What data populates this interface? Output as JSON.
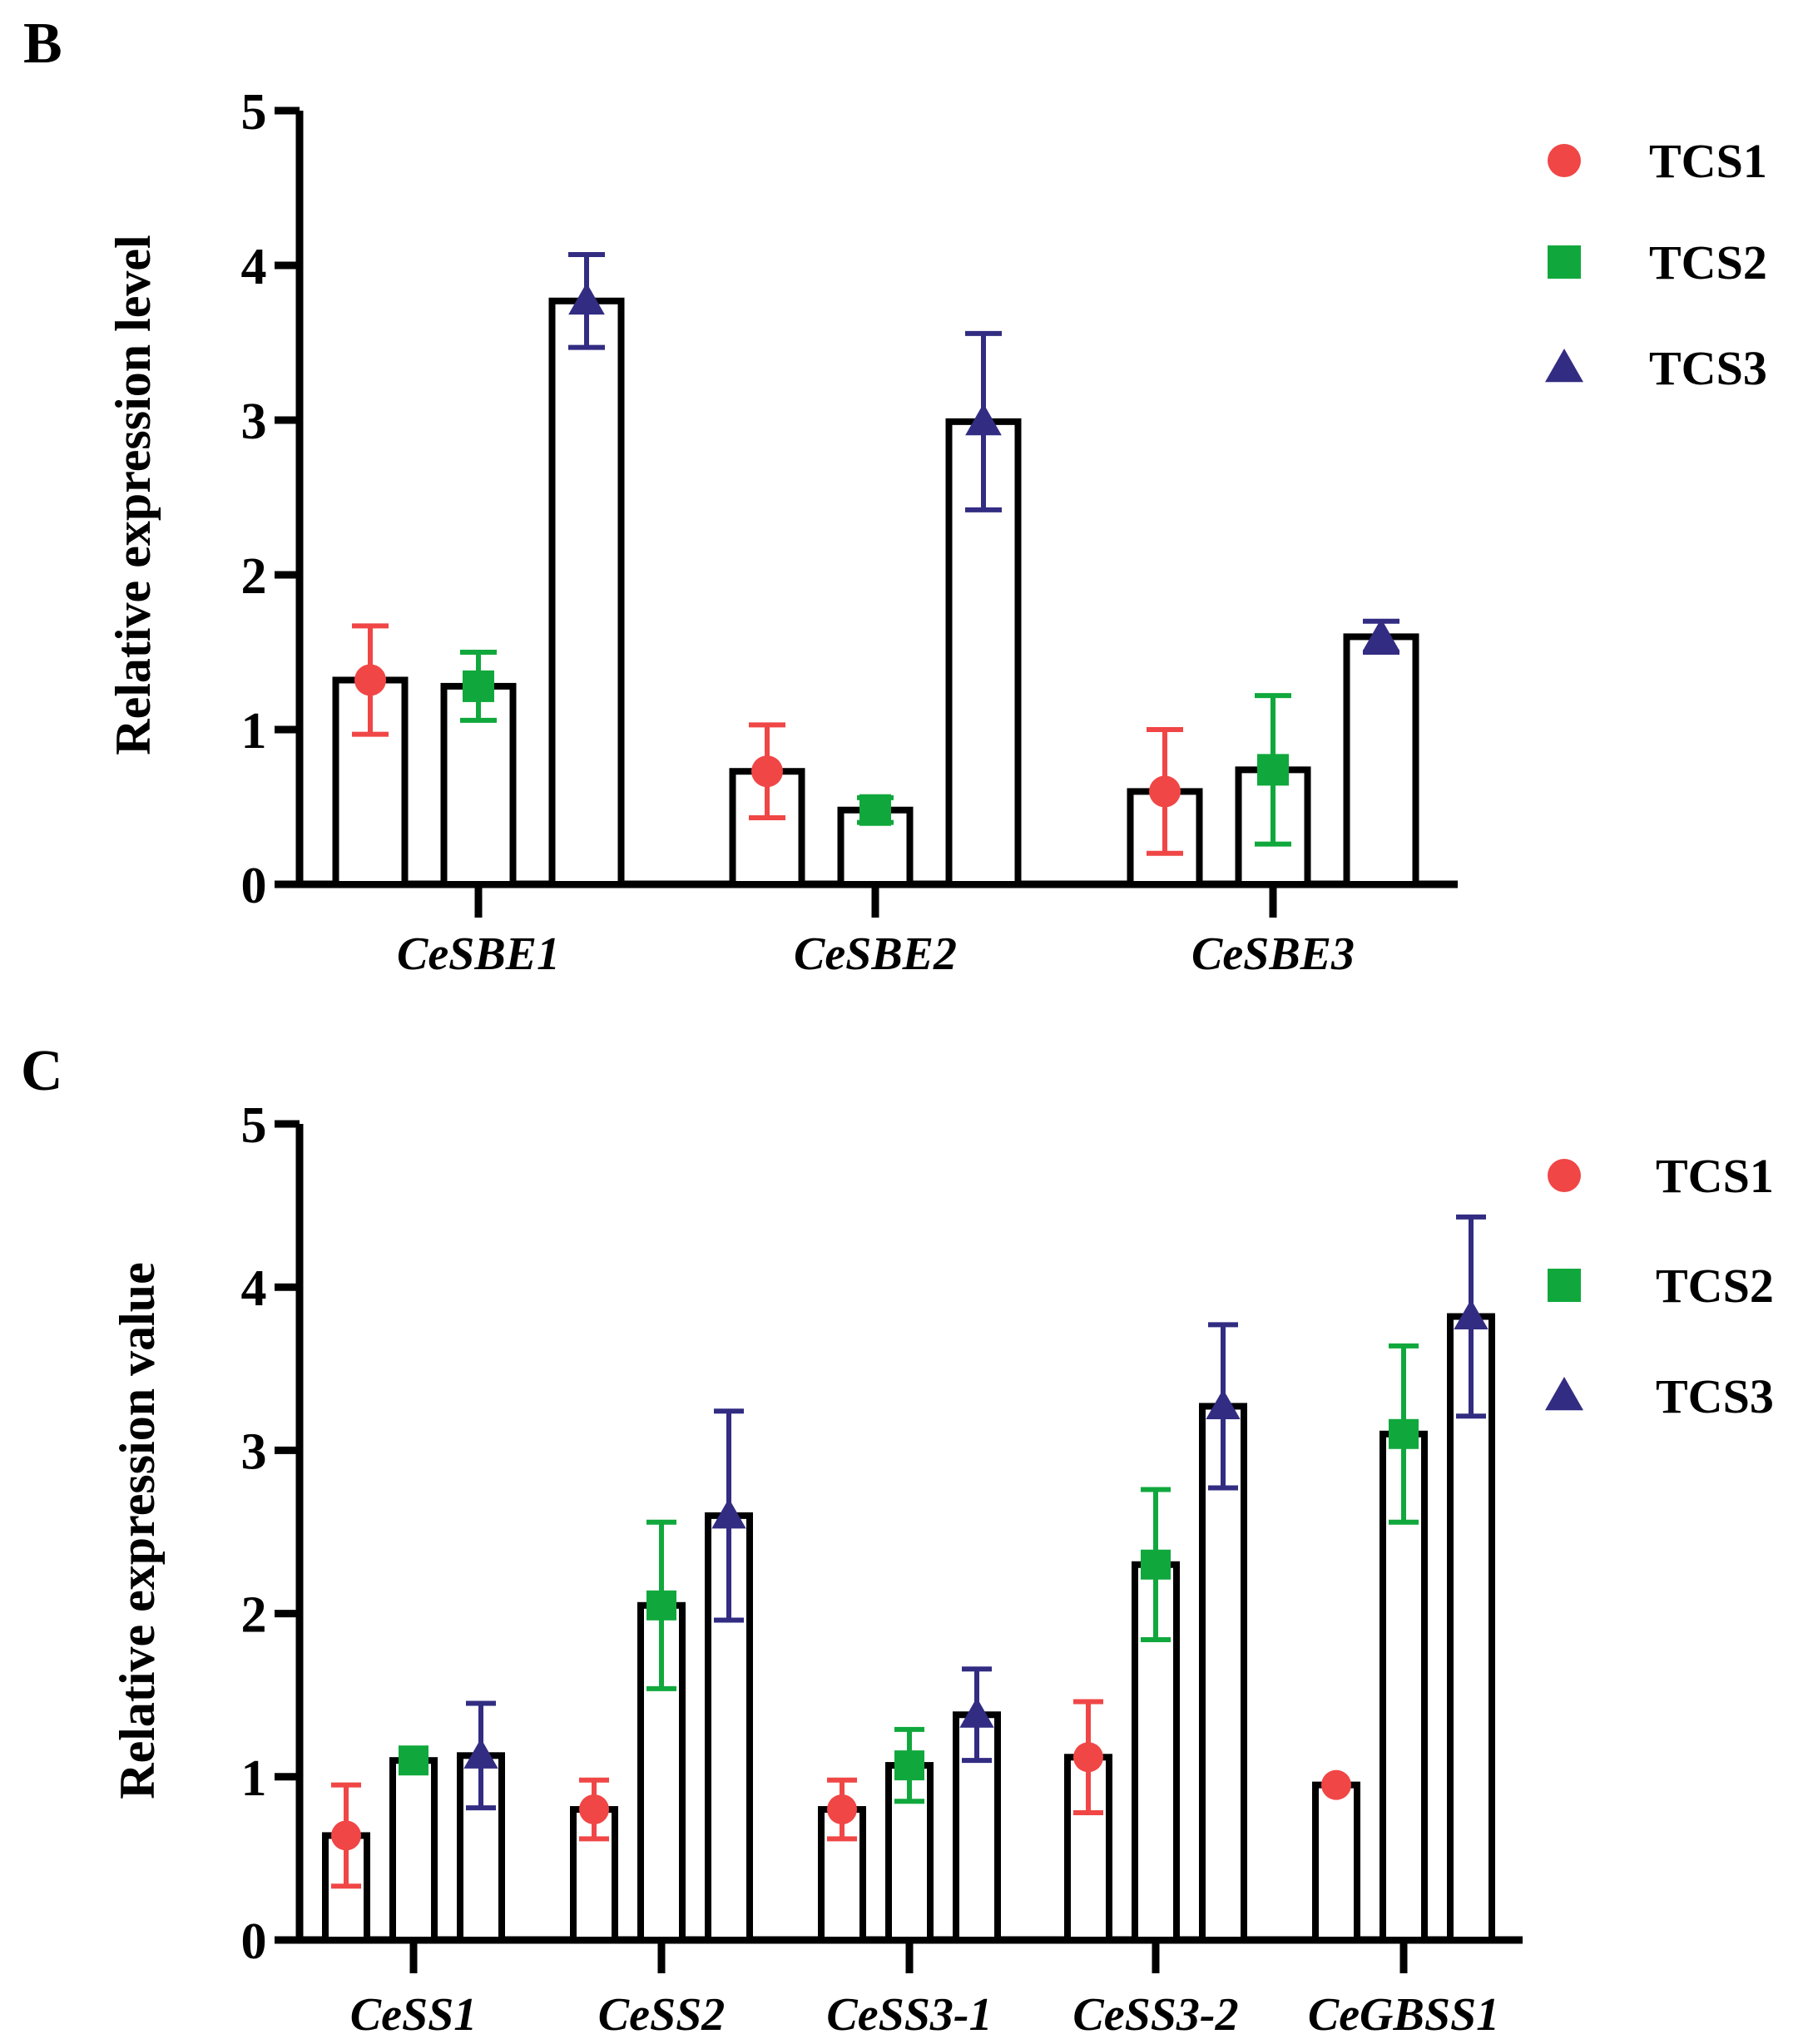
{
  "chart_data": [
    {
      "panel_label": "B",
      "type": "bar",
      "ylabel": "Relative expression level",
      "ylim": [
        0,
        5
      ],
      "yticks": [
        "0",
        "1",
        "2",
        "3",
        "4",
        "5"
      ],
      "categories": [
        "CeSBE1",
        "CeSBE2",
        "CeSBE3"
      ],
      "series": [
        {
          "name": "TCS1",
          "marker": "circle",
          "color": "#f04646",
          "values": [
            1.32,
            0.73,
            0.6
          ],
          "errors": [
            0.35,
            0.3,
            0.4
          ]
        },
        {
          "name": "TCS2",
          "marker": "square",
          "color": "#10a83c",
          "values": [
            1.28,
            0.48,
            0.74
          ],
          "errors": [
            0.22,
            0.08,
            0.48
          ]
        },
        {
          "name": "TCS3",
          "marker": "triangle",
          "color": "#322c82",
          "values": [
            3.77,
            2.99,
            1.6
          ],
          "errors": [
            0.3,
            0.57,
            0.1
          ]
        }
      ],
      "legend": [
        "TCS1",
        "TCS2",
        "TCS3"
      ],
      "legend_position": "top-right"
    },
    {
      "panel_label": "C",
      "type": "bar",
      "ylabel": "Relative expression value",
      "ylim": [
        0,
        5
      ],
      "yticks": [
        "0",
        "1",
        "2",
        "3",
        "4",
        "5"
      ],
      "categories": [
        "CeSS1",
        "CeSS2",
        "CeSS3-1",
        "CeSS3-2",
        "CeGBSS1"
      ],
      "series": [
        {
          "name": "TCS1",
          "marker": "circle",
          "color": "#f04646",
          "values": [
            0.64,
            0.8,
            0.8,
            1.12,
            0.95
          ],
          "errors": [
            0.31,
            0.18,
            0.18,
            0.34,
            0.0
          ]
        },
        {
          "name": "TCS2",
          "marker": "square",
          "color": "#10a83c",
          "values": [
            1.1,
            2.05,
            1.07,
            2.3,
            3.1
          ],
          "errors": [
            0.0,
            0.51,
            0.22,
            0.46,
            0.54
          ]
        },
        {
          "name": "TCS3",
          "marker": "triangle",
          "color": "#322c82",
          "values": [
            1.13,
            2.6,
            1.38,
            3.27,
            3.82
          ],
          "errors": [
            0.32,
            0.64,
            0.28,
            0.5,
            0.61
          ]
        }
      ],
      "legend": [
        "TCS1",
        "TCS2",
        "TCS3"
      ],
      "legend_position": "top-right"
    }
  ]
}
